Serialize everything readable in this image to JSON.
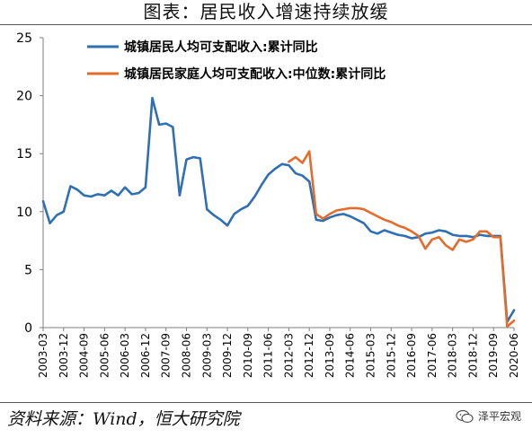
{
  "title": "图表：居民收入增速持续放缓",
  "source": "资料来源：Wind，恒大研究院",
  "watermark": "泽平宏观",
  "chart_data": {
    "type": "line",
    "ylim": [
      0,
      25
    ],
    "yticks": [
      0,
      5,
      10,
      15,
      20,
      25
    ],
    "x_start": "2003-03",
    "x_end": "2020-06",
    "xticks": [
      "2003-03",
      "2003-12",
      "2004-09",
      "2005-06",
      "2006-03",
      "2006-12",
      "2007-09",
      "2008-06",
      "2009-03",
      "2009-12",
      "2010-09",
      "2011-06",
      "2012-03",
      "2012-12",
      "2013-09",
      "2014-06",
      "2015-03",
      "2015-12",
      "2016-09",
      "2017-06",
      "2018-03",
      "2018-12",
      "2019-09",
      "2020-06"
    ],
    "legend_position": "top-left",
    "series": [
      {
        "name": "城镇居民人均可支配收入:累计同比",
        "color": "#2f6fb4",
        "points": [
          [
            "2003-03",
            10.9
          ],
          [
            "2003-06",
            9.0
          ],
          [
            "2003-09",
            9.7
          ],
          [
            "2003-12",
            10.0
          ],
          [
            "2004-03",
            12.2
          ],
          [
            "2004-06",
            11.9
          ],
          [
            "2004-09",
            11.4
          ],
          [
            "2004-12",
            11.3
          ],
          [
            "2005-03",
            11.5
          ],
          [
            "2005-06",
            11.4
          ],
          [
            "2005-09",
            11.8
          ],
          [
            "2005-12",
            11.4
          ],
          [
            "2006-03",
            12.1
          ],
          [
            "2006-06",
            11.5
          ],
          [
            "2006-09",
            11.6
          ],
          [
            "2006-12",
            12.1
          ],
          [
            "2007-03",
            19.8
          ],
          [
            "2007-06",
            17.5
          ],
          [
            "2007-09",
            17.6
          ],
          [
            "2007-12",
            17.3
          ],
          [
            "2008-03",
            11.4
          ],
          [
            "2008-06",
            14.5
          ],
          [
            "2008-09",
            14.7
          ],
          [
            "2008-12",
            14.6
          ],
          [
            "2009-03",
            10.2
          ],
          [
            "2009-06",
            9.7
          ],
          [
            "2009-09",
            9.3
          ],
          [
            "2009-12",
            8.8
          ],
          [
            "2010-03",
            9.8
          ],
          [
            "2010-06",
            10.2
          ],
          [
            "2010-09",
            10.5
          ],
          [
            "2010-12",
            11.3
          ],
          [
            "2011-03",
            12.3
          ],
          [
            "2011-06",
            13.2
          ],
          [
            "2011-09",
            13.7
          ],
          [
            "2011-12",
            14.1
          ],
          [
            "2012-03",
            14.0
          ],
          [
            "2012-06",
            13.3
          ],
          [
            "2012-09",
            13.1
          ],
          [
            "2012-12",
            12.6
          ],
          [
            "2013-03",
            9.3
          ],
          [
            "2013-06",
            9.2
          ],
          [
            "2013-09",
            9.5
          ],
          [
            "2013-12",
            9.7
          ],
          [
            "2014-03",
            9.8
          ],
          [
            "2014-06",
            9.6
          ],
          [
            "2014-09",
            9.3
          ],
          [
            "2014-12",
            9.0
          ],
          [
            "2015-03",
            8.3
          ],
          [
            "2015-06",
            8.1
          ],
          [
            "2015-09",
            8.4
          ],
          [
            "2015-12",
            8.2
          ],
          [
            "2016-03",
            8.0
          ],
          [
            "2016-06",
            7.9
          ],
          [
            "2016-09",
            7.7
          ],
          [
            "2016-12",
            7.8
          ],
          [
            "2017-03",
            8.1
          ],
          [
            "2017-06",
            8.2
          ],
          [
            "2017-09",
            8.4
          ],
          [
            "2017-12",
            8.3
          ],
          [
            "2018-03",
            8.0
          ],
          [
            "2018-06",
            7.9
          ],
          [
            "2018-09",
            7.9
          ],
          [
            "2018-12",
            7.8
          ],
          [
            "2019-03",
            8.0
          ],
          [
            "2019-06",
            7.9
          ],
          [
            "2019-09",
            7.9
          ],
          [
            "2019-12",
            7.9
          ],
          [
            "2020-03",
            0.5
          ],
          [
            "2020-06",
            1.5
          ]
        ]
      },
      {
        "name": "城镇居民家庭人均可支配收入:中位数:累计同比",
        "color": "#e46c2b",
        "points": [
          [
            "2012-03",
            14.3
          ],
          [
            "2012-06",
            14.7
          ],
          [
            "2012-09",
            14.2
          ],
          [
            "2012-12",
            15.2
          ],
          [
            "2013-03",
            9.8
          ],
          [
            "2013-06",
            9.4
          ],
          [
            "2013-09",
            9.8
          ],
          [
            "2013-12",
            10.1
          ],
          [
            "2014-03",
            10.2
          ],
          [
            "2014-06",
            10.3
          ],
          [
            "2014-09",
            10.3
          ],
          [
            "2014-12",
            10.2
          ],
          [
            "2015-03",
            9.9
          ],
          [
            "2015-06",
            9.6
          ],
          [
            "2015-09",
            9.3
          ],
          [
            "2015-12",
            9.1
          ],
          [
            "2016-03",
            8.8
          ],
          [
            "2016-06",
            8.6
          ],
          [
            "2016-09",
            8.3
          ],
          [
            "2016-12",
            7.9
          ],
          [
            "2017-03",
            6.8
          ],
          [
            "2017-06",
            7.6
          ],
          [
            "2017-09",
            7.8
          ],
          [
            "2017-12",
            7.1
          ],
          [
            "2018-03",
            6.7
          ],
          [
            "2018-06",
            7.6
          ],
          [
            "2018-09",
            7.4
          ],
          [
            "2018-12",
            7.6
          ],
          [
            "2019-03",
            8.3
          ],
          [
            "2019-06",
            8.3
          ],
          [
            "2019-09",
            7.8
          ],
          [
            "2019-12",
            7.8
          ],
          [
            "2020-03",
            0.1
          ],
          [
            "2020-06",
            0.6
          ]
        ]
      }
    ]
  }
}
